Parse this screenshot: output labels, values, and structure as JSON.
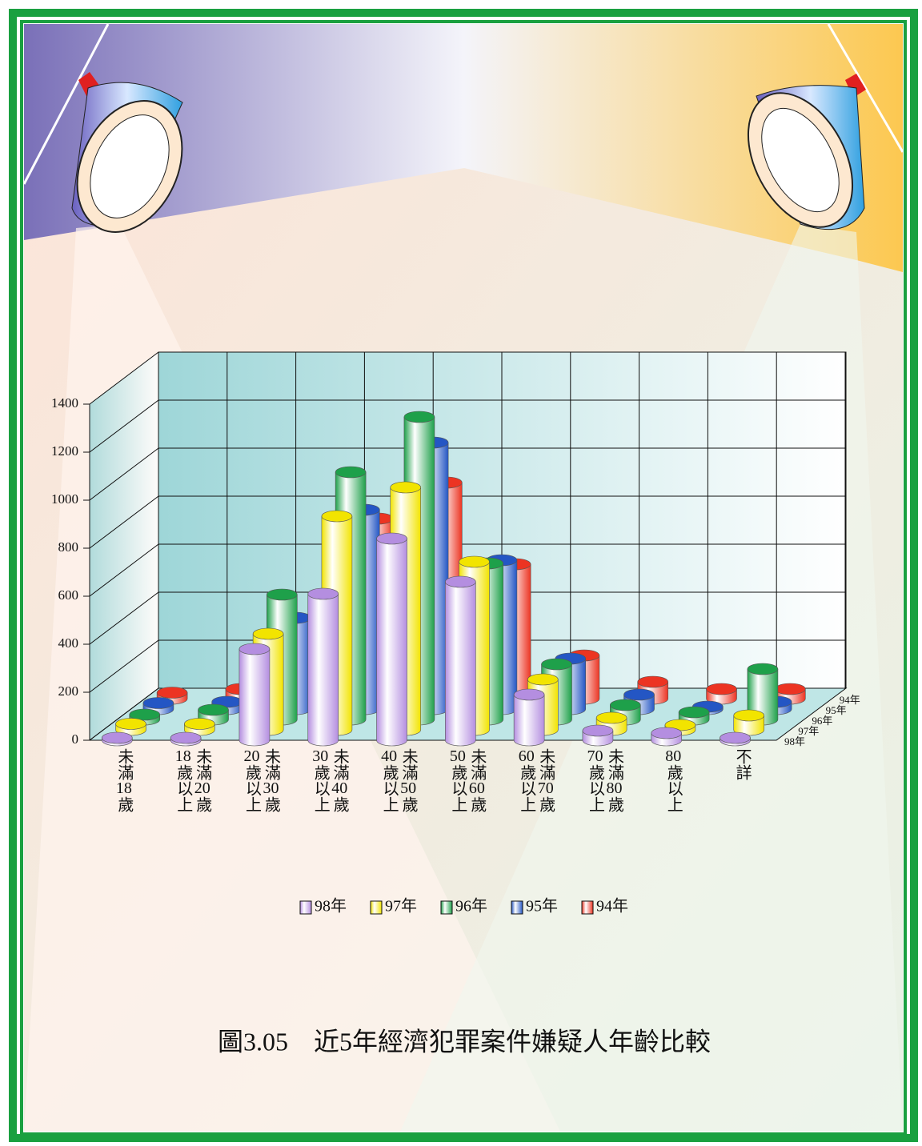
{
  "chart_data": {
    "type": "bar3d",
    "title": "圖3.05　近5年經濟犯罪案件嫌疑人年齡比較",
    "categories": [
      "未滿18歲",
      "18歲以上未滿20歲",
      "20歲以上未滿30歲",
      "30歲以上未滿40歲",
      "40歲以上未滿50歲",
      "50歲以上未滿60歲",
      "60歲以上未滿70歲",
      "70歲以上未滿80歲",
      "80歲以上",
      "不詳"
    ],
    "series": [
      {
        "name": "98年",
        "color": "#b48ee0",
        "values": [
          10,
          10,
          380,
          610,
          840,
          660,
          190,
          40,
          30,
          10
        ]
      },
      {
        "name": "97年",
        "color": "#f2e400",
        "values": [
          25,
          25,
          400,
          890,
          1010,
          700,
          210,
          50,
          20,
          60
        ]
      },
      {
        "name": "96年",
        "color": "#1ea04a",
        "values": [
          20,
          40,
          520,
          1030,
          1260,
          650,
          230,
          60,
          30,
          210
        ]
      },
      {
        "name": "95年",
        "color": "#2456c4",
        "values": [
          25,
          30,
          380,
          830,
          1110,
          620,
          210,
          60,
          10,
          30
        ]
      },
      {
        "name": "94年",
        "color": "#ec3422",
        "values": [
          25,
          40,
          320,
          750,
          900,
          560,
          180,
          70,
          40,
          40
        ]
      }
    ],
    "ylim": [
      0,
      1400
    ],
    "yticks": [
      0,
      200,
      400,
      600,
      800,
      1000,
      1200,
      1400
    ],
    "grid": true
  }
}
